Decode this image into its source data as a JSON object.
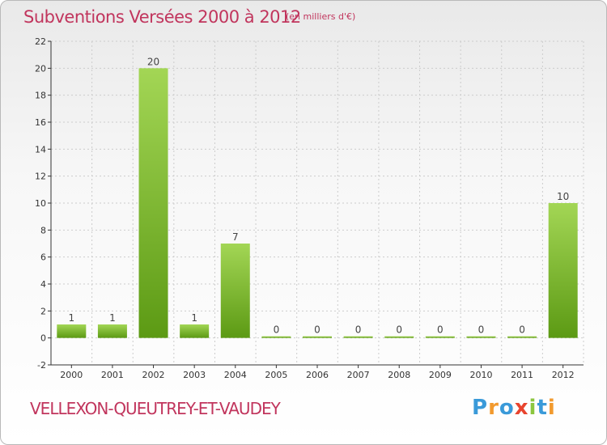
{
  "header": {
    "title": "Subventions Versées 2000 à 2012",
    "subtitle": "(en milliers d'€)"
  },
  "footer": {
    "town": "VELLEXON-QUEUTREY-ET-VAUDEY",
    "logo": [
      "P",
      "r",
      "o",
      "x",
      "i",
      "t",
      "i"
    ]
  },
  "colors": {
    "accent": "#c1355d",
    "bar_light": "#a3d655",
    "bar_dark": "#5c9a14",
    "axis": "#333333",
    "grid": "#cccccc",
    "logo_letters": [
      "#3a9ad9",
      "#f29a2e",
      "#3a9ad9",
      "#e8442e",
      "#8cc63f",
      "#3a9ad9",
      "#f29a2e"
    ]
  },
  "chart_data": {
    "type": "bar",
    "title": "Subventions Versées 2000 à 2012",
    "subtitle": "(en milliers d'€)",
    "categories": [
      "2000",
      "2001",
      "2002",
      "2003",
      "2004",
      "2005",
      "2006",
      "2007",
      "2008",
      "2009",
      "2010",
      "2011",
      "2012"
    ],
    "values": [
      1,
      1,
      20,
      1,
      7,
      0,
      0,
      0,
      0,
      0,
      0,
      0,
      10
    ],
    "xlabel": "",
    "ylabel": "",
    "ylim": [
      -2,
      22
    ],
    "yticks": [
      -2,
      0,
      2,
      4,
      6,
      8,
      10,
      12,
      14,
      16,
      18,
      20,
      22
    ],
    "grid": true,
    "legend": "none"
  }
}
